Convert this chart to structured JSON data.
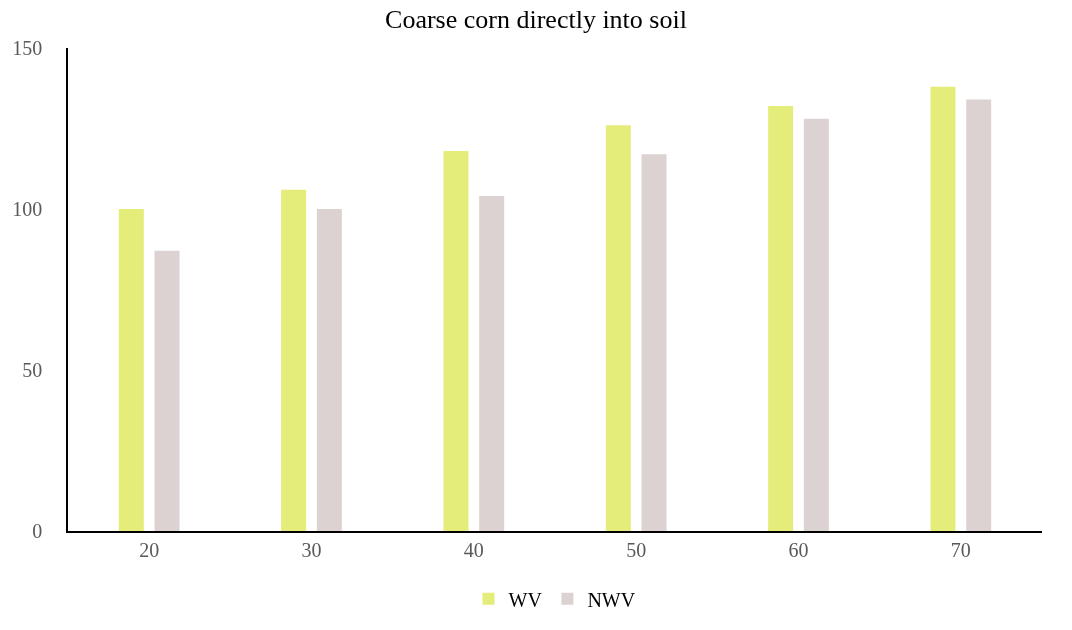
{
  "chart_data": {
    "type": "bar",
    "title": "Coarse corn directly into soil",
    "categories": [
      "20",
      "30",
      "40",
      "50",
      "60",
      "70"
    ],
    "series": [
      {
        "name": "WV",
        "color": "#e4ec7a",
        "values": [
          100,
          106,
          118,
          126,
          132,
          138
        ]
      },
      {
        "name": "NWV",
        "color": "#ddd2d2",
        "values": [
          87,
          100,
          104,
          117,
          128,
          134
        ]
      }
    ],
    "ylim": [
      0,
      150
    ],
    "yticks": [
      0,
      50,
      100,
      150
    ],
    "grid": false,
    "legend": "bottom"
  }
}
